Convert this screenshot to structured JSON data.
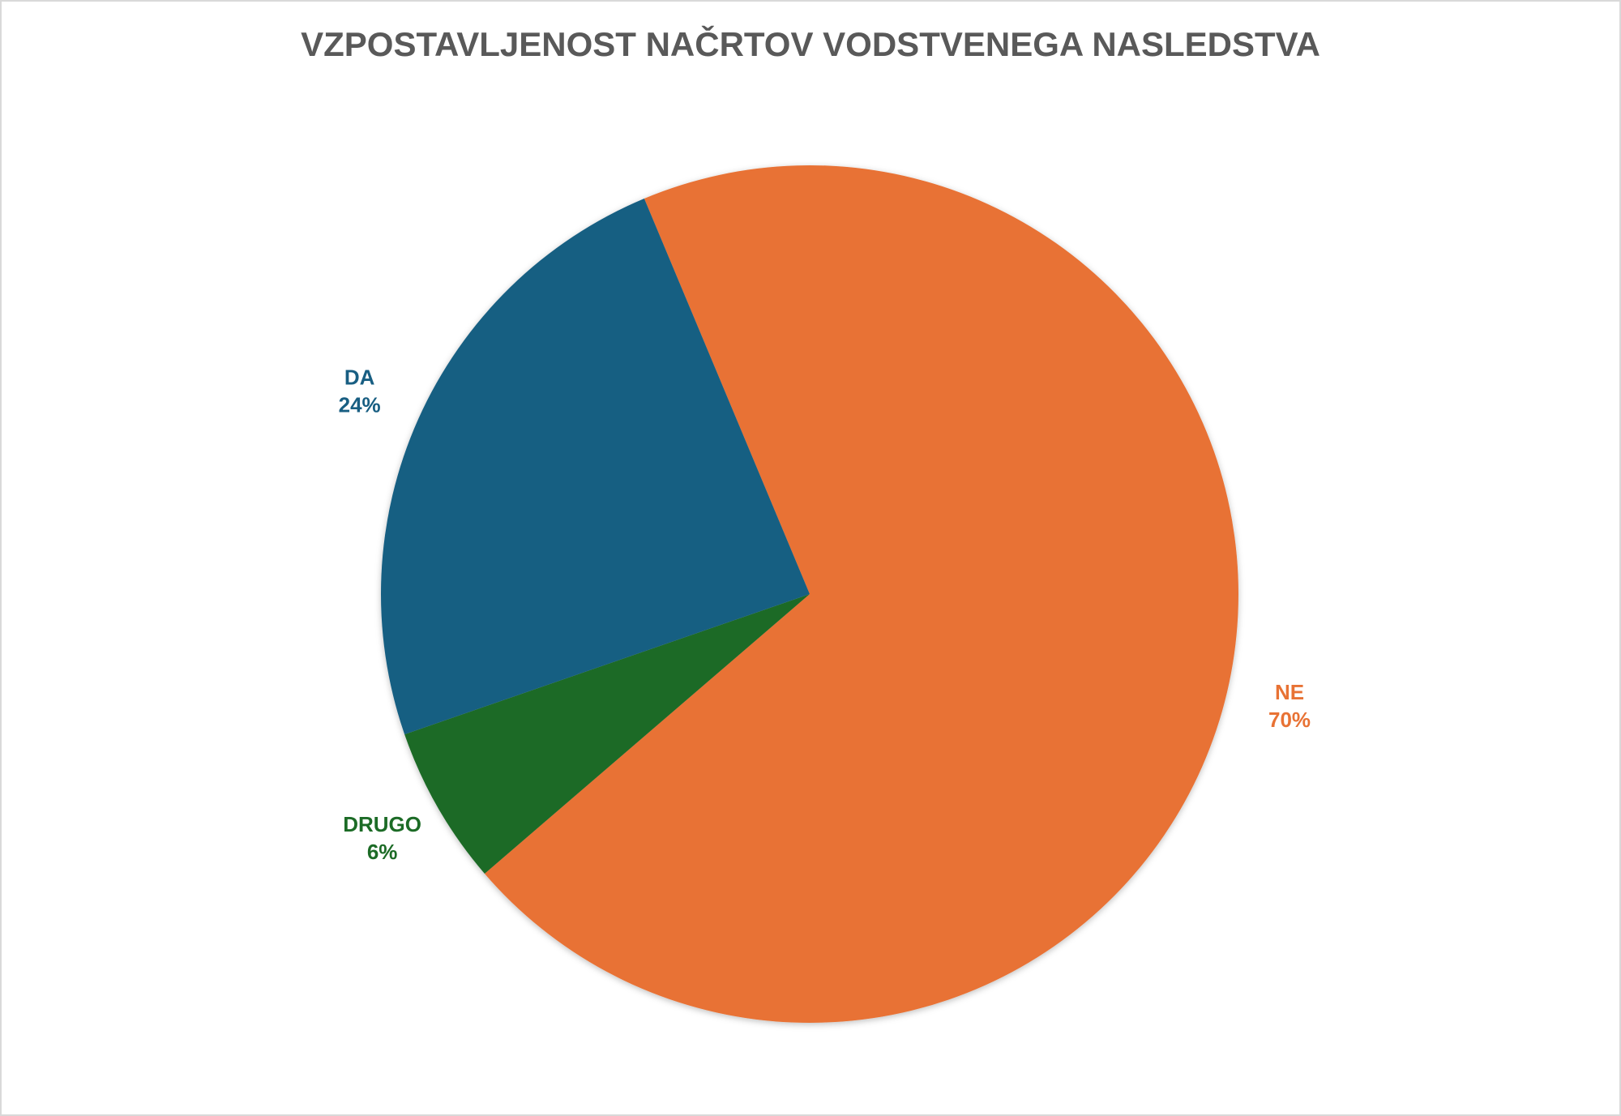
{
  "chart_data": {
    "type": "pie",
    "title": "VZPOSTAVLJENOST NAČRTOV VODSTVENEGA NASLEDSTVA",
    "categories": [
      "NE",
      "DRUGO",
      "DA"
    ],
    "values": [
      70,
      6,
      24
    ],
    "value_labels": [
      "70%",
      "6%",
      "24%"
    ],
    "colors": [
      "#E87234",
      "#1C6B26",
      "#185E82"
    ]
  }
}
